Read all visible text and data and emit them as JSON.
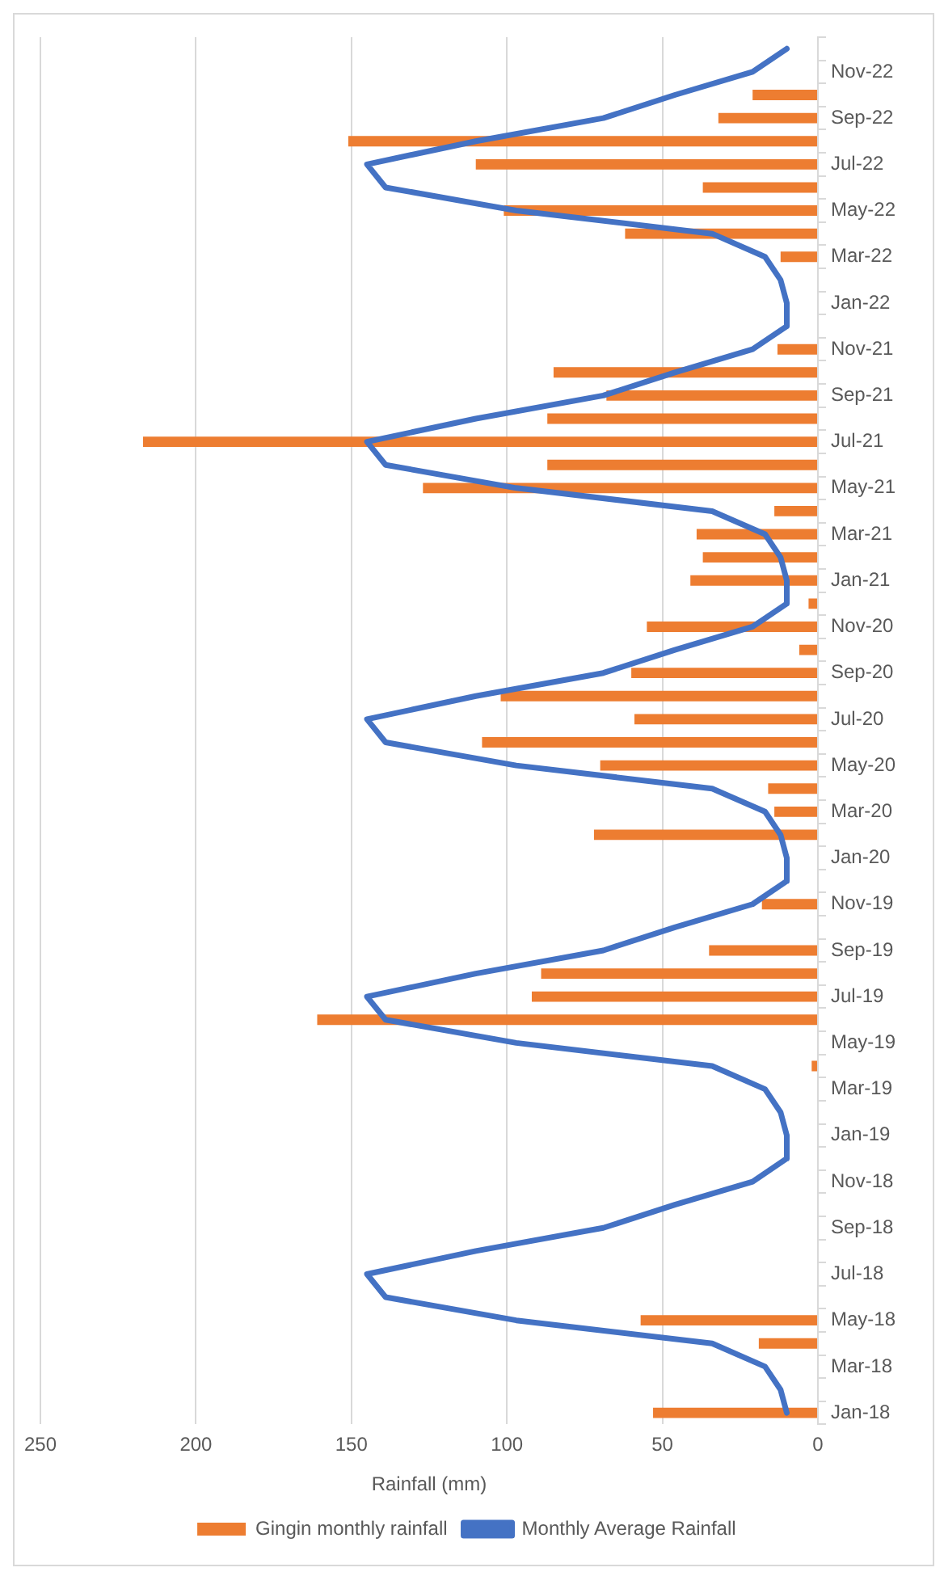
{
  "chart_data": {
    "type": "bar",
    "orientation": "horizontal",
    "xlabel": "Rainfall (mm)",
    "categories": [
      null,
      "Nov-22",
      null,
      "Sep-22",
      null,
      "Jul-22",
      null,
      "May-22",
      null,
      "Mar-22",
      null,
      "Jan-22",
      null,
      "Nov-21",
      null,
      "Sep-21",
      null,
      "Jul-21",
      null,
      "May-21",
      null,
      "Mar-21",
      null,
      "Jan-21",
      null,
      "Nov-20",
      null,
      "Sep-20",
      null,
      "Jul-20",
      null,
      "May-20",
      null,
      "Mar-20",
      null,
      "Jan-20",
      null,
      "Nov-19",
      null,
      "Sep-19",
      null,
      "Jul-19",
      null,
      "May-19",
      null,
      "Mar-19",
      null,
      "Jan-19",
      null,
      "Nov-18",
      null,
      "Sep-18",
      null,
      "Jul-18",
      null,
      "May-18",
      null,
      "Mar-18",
      null,
      "Jan-18"
    ],
    "series": [
      {
        "name": "Gingin monthly rainfall",
        "color": "#ed7d31",
        "values": [
          null,
          0,
          21,
          32,
          151,
          110,
          37,
          101,
          62,
          12,
          0,
          0,
          0,
          13,
          85,
          68,
          87,
          217,
          87,
          127,
          14,
          39,
          37,
          41,
          3,
          55,
          6,
          60,
          102,
          59,
          108,
          70,
          16,
          14,
          72,
          0,
          0,
          18,
          0,
          35,
          89,
          92,
          161,
          0,
          2,
          0,
          0,
          0,
          0,
          0,
          0,
          0,
          0,
          0,
          0,
          57,
          19,
          0,
          0,
          53
        ]
      },
      {
        "name": "Monthly Average Rainfall",
        "type": "line",
        "color": "#4472c4",
        "values": [
          10,
          21,
          46,
          69,
          110,
          145,
          139,
          97,
          34,
          17,
          12,
          10,
          10,
          21,
          46,
          69,
          110,
          145,
          139,
          97,
          34,
          17,
          12,
          10,
          10,
          21,
          46,
          69,
          110,
          145,
          139,
          97,
          34,
          17,
          12,
          10,
          10,
          21,
          46,
          69,
          110,
          145,
          139,
          97,
          34,
          17,
          12,
          10,
          10,
          21,
          46,
          69,
          110,
          145,
          139,
          97,
          34,
          17,
          12,
          10
        ]
      }
    ],
    "xlim": [
      250,
      0
    ],
    "xticks": [
      250,
      200,
      150,
      100,
      50,
      0
    ],
    "grid": "x",
    "legend": "bottom",
    "marker": "none"
  }
}
